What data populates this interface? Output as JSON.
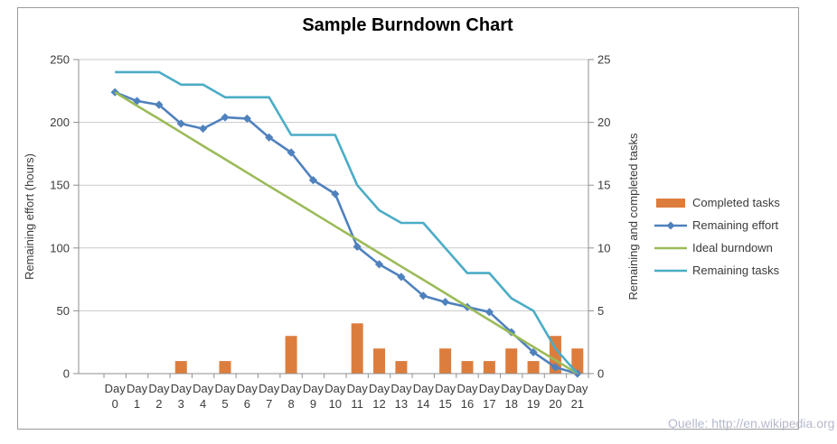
{
  "title": "Sample Burndown Chart",
  "source_note": "Quelle: http://en.wikipedia.org",
  "colors": {
    "bar_orange": "#DD7D3D",
    "effort_blue": "#4F81BD",
    "ideal_green": "#9BBB59",
    "tasks_teal": "#4BACC6",
    "gridline": "#c9c9c9",
    "axis_line": "#8f8f8f",
    "text": "#3b3b3b",
    "source_text": "#b6b9cc"
  },
  "chart_data": {
    "type": "bar",
    "subtype": "combo-bar-line",
    "title": "Sample Burndown Chart",
    "category_label_line1": "Day",
    "categories": [
      "0",
      "1",
      "2",
      "3",
      "4",
      "5",
      "6",
      "7",
      "8",
      "9",
      "10",
      "11",
      "12",
      "13",
      "14",
      "15",
      "16",
      "17",
      "18",
      "19",
      "20",
      "21"
    ],
    "left_axis": {
      "title": "Remaining effort (hours)",
      "min": 0,
      "max": 250,
      "tick_step": 50,
      "ticks": [
        "0",
        "50",
        "100",
        "150",
        "200",
        "250"
      ]
    },
    "right_axis": {
      "title": "Remaining and  completed tasks",
      "min": 0,
      "max": 25,
      "tick_step": 5,
      "ticks": [
        "0",
        "5",
        "10",
        "15",
        "20",
        "25"
      ]
    },
    "gridlines": "horizontal",
    "legend_position": "right",
    "series": [
      {
        "name": "Completed tasks",
        "type": "bar",
        "axis": "right",
        "color": "#DD7D3D",
        "values": [
          null,
          null,
          null,
          1,
          null,
          1,
          null,
          null,
          3,
          null,
          null,
          4,
          2,
          1,
          null,
          2,
          1,
          1,
          2,
          1,
          3,
          2
        ]
      },
      {
        "name": "Remaining effort",
        "type": "line",
        "marker": "diamond",
        "axis": "left",
        "color": "#4F81BD",
        "values": [
          224,
          217,
          214,
          199,
          195,
          204,
          203,
          188,
          176,
          154,
          143,
          101,
          87,
          77,
          62,
          57,
          53,
          49,
          33,
          17,
          5,
          0
        ]
      },
      {
        "name": "Ideal burndown",
        "type": "line",
        "marker": "none",
        "axis": "left",
        "color": "#9BBB59",
        "values": [
          224,
          213.3,
          202.7,
          192,
          181.3,
          170.7,
          160,
          149.3,
          138.7,
          128,
          117.3,
          106.7,
          96,
          85.3,
          74.7,
          64,
          53.3,
          42.7,
          32,
          21.3,
          10.7,
          0
        ]
      },
      {
        "name": "Remaining tasks",
        "type": "line",
        "marker": "none",
        "axis": "right",
        "color": "#4BACC6",
        "values": [
          24,
          24,
          24,
          23,
          23,
          22,
          22,
          22,
          19,
          19,
          19,
          15,
          13,
          12,
          12,
          10,
          8,
          8,
          6,
          5,
          2,
          0
        ]
      }
    ]
  }
}
